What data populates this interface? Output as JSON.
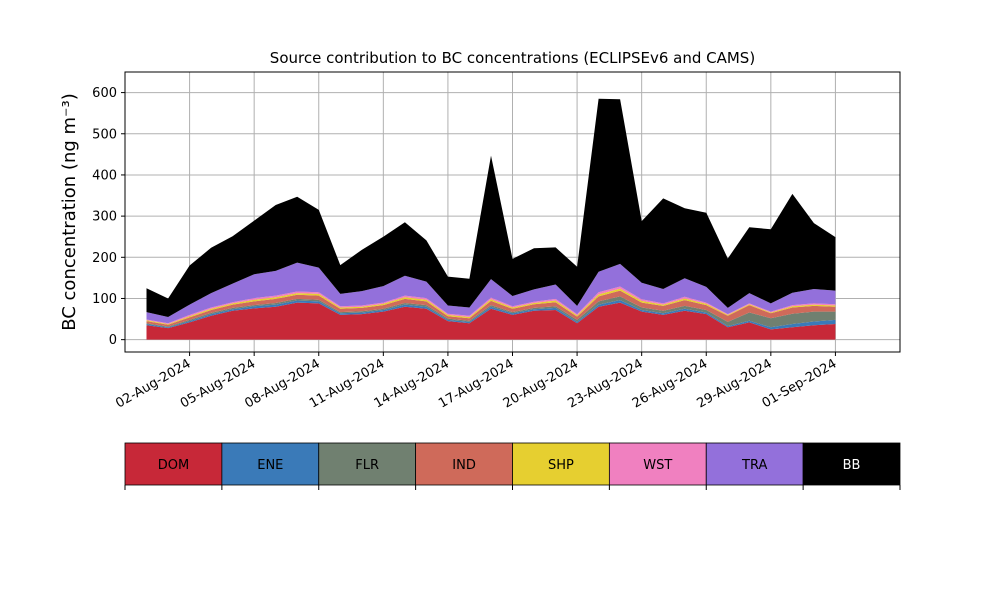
{
  "chart_data": {
    "type": "area",
    "stacked": true,
    "title": "Source contribution to BC concentrations (ECLIPSEv6 and CAMS)",
    "ylabel": "BC concentration (ng m⁻³)",
    "xlabel": "",
    "ylim": [
      -30,
      650
    ],
    "yticks": [
      0,
      100,
      200,
      300,
      400,
      500,
      600
    ],
    "xlim": [
      "2024-07-30",
      "2024-09-04"
    ],
    "xticks": [
      "2024-08-02",
      "2024-08-05",
      "2024-08-08",
      "2024-08-11",
      "2024-08-14",
      "2024-08-17",
      "2024-08-20",
      "2024-08-23",
      "2024-08-26",
      "2024-08-29",
      "2024-09-01"
    ],
    "xtick_labels": [
      "02-Aug-2024",
      "05-Aug-2024",
      "08-Aug-2024",
      "11-Aug-2024",
      "14-Aug-2024",
      "17-Aug-2024",
      "20-Aug-2024",
      "23-Aug-2024",
      "26-Aug-2024",
      "29-Aug-2024",
      "01-Sep-2024"
    ],
    "grid": true,
    "legend_position": "bottom",
    "x": [
      "2024-07-31",
      "2024-08-01",
      "2024-08-02",
      "2024-08-03",
      "2024-08-04",
      "2024-08-05",
      "2024-08-06",
      "2024-08-07",
      "2024-08-08",
      "2024-08-09",
      "2024-08-10",
      "2024-08-11",
      "2024-08-12",
      "2024-08-13",
      "2024-08-14",
      "2024-08-15",
      "2024-08-16",
      "2024-08-17",
      "2024-08-18",
      "2024-08-19",
      "2024-08-20",
      "2024-08-21",
      "2024-08-22",
      "2024-08-23",
      "2024-08-24",
      "2024-08-25",
      "2024-08-26",
      "2024-08-27",
      "2024-08-28",
      "2024-08-29",
      "2024-08-30",
      "2024-08-31",
      "2024-09-01"
    ],
    "series": [
      {
        "name": "DOM",
        "color": "#c72838",
        "values": [
          35,
          28,
          42,
          58,
          70,
          76,
          80,
          90,
          88,
          60,
          62,
          68,
          80,
          75,
          45,
          40,
          75,
          60,
          70,
          72,
          40,
          80,
          90,
          68,
          60,
          70,
          62,
          30,
          42,
          25,
          30,
          35,
          38
        ]
      },
      {
        "name": "ENE",
        "color": "#3a7ab8",
        "values": [
          3,
          2,
          3,
          4,
          4,
          5,
          5,
          5,
          5,
          4,
          4,
          4,
          5,
          5,
          3,
          3,
          5,
          4,
          4,
          5,
          3,
          5,
          6,
          4,
          4,
          5,
          4,
          3,
          4,
          5,
          8,
          9,
          10
        ]
      },
      {
        "name": "FLR",
        "color": "#708070",
        "values": [
          2,
          2,
          3,
          3,
          3,
          3,
          4,
          4,
          4,
          3,
          3,
          3,
          4,
          4,
          3,
          3,
          4,
          3,
          3,
          4,
          5,
          8,
          9,
          6,
          6,
          7,
          6,
          10,
          20,
          22,
          25,
          24,
          20
        ]
      },
      {
        "name": "IND",
        "color": "#cf6a5a",
        "values": [
          5,
          4,
          6,
          7,
          8,
          9,
          10,
          10,
          10,
          8,
          8,
          9,
          10,
          9,
          6,
          6,
          10,
          8,
          9,
          10,
          8,
          12,
          14,
          12,
          12,
          14,
          12,
          15,
          18,
          12,
          15,
          14,
          12
        ]
      },
      {
        "name": "SHP",
        "color": "#e6cf30",
        "values": [
          2,
          2,
          3,
          3,
          3,
          4,
          4,
          4,
          4,
          3,
          3,
          3,
          4,
          4,
          3,
          3,
          4,
          3,
          3,
          4,
          3,
          5,
          5,
          4,
          3,
          4,
          3,
          2,
          2,
          2,
          3,
          3,
          3
        ]
      },
      {
        "name": "WST",
        "color": "#f080c0",
        "values": [
          2,
          2,
          3,
          3,
          3,
          4,
          4,
          4,
          4,
          3,
          3,
          3,
          4,
          4,
          3,
          3,
          4,
          3,
          3,
          4,
          3,
          5,
          5,
          4,
          3,
          4,
          3,
          2,
          2,
          2,
          3,
          3,
          3
        ]
      },
      {
        "name": "TRA",
        "color": "#9370db",
        "values": [
          18,
          15,
          25,
          35,
          45,
          58,
          60,
          70,
          60,
          30,
          35,
          40,
          48,
          40,
          20,
          20,
          45,
          25,
          30,
          35,
          20,
          50,
          55,
          40,
          35,
          45,
          38,
          15,
          25,
          20,
          30,
          35,
          33
        ]
      },
      {
        "name": "BB",
        "color": "#000000",
        "values": [
          58,
          45,
          95,
          110,
          115,
          130,
          160,
          160,
          140,
          70,
          100,
          120,
          130,
          100,
          70,
          70,
          300,
          90,
          100,
          90,
          95,
          420,
          400,
          150,
          220,
          170,
          180,
          120,
          160,
          180,
          240,
          160,
          130
        ]
      }
    ]
  }
}
